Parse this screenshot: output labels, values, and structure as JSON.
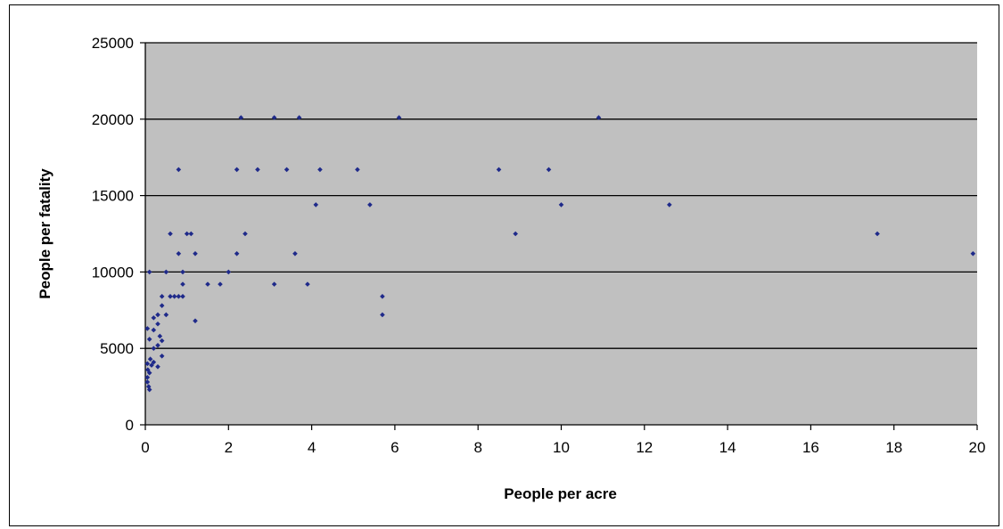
{
  "chart_data": {
    "type": "scatter",
    "title": "",
    "xlabel": "People per acre",
    "ylabel": "People per fatality",
    "xlim": [
      0,
      20
    ],
    "ylim": [
      0,
      25000
    ],
    "x_ticks": [
      0,
      2,
      4,
      6,
      8,
      10,
      12,
      14,
      16,
      18,
      20
    ],
    "y_ticks": [
      0,
      5000,
      10000,
      15000,
      20000,
      25000
    ],
    "grid": "horizontal",
    "legend": "none",
    "marker_color": "#1f2a8a",
    "background_color": "#c0c0c0",
    "series": [
      {
        "points": [
          [
            2.3,
            20100
          ],
          [
            3.1,
            20100
          ],
          [
            3.7,
            20100
          ],
          [
            6.1,
            20100
          ],
          [
            10.9,
            20100
          ],
          [
            0.8,
            16700
          ],
          [
            2.2,
            16700
          ],
          [
            2.7,
            16700
          ],
          [
            3.4,
            16700
          ],
          [
            4.2,
            16700
          ],
          [
            5.1,
            16700
          ],
          [
            8.5,
            16700
          ],
          [
            9.7,
            16700
          ],
          [
            4.1,
            14400
          ],
          [
            5.4,
            14400
          ],
          [
            10.0,
            14400
          ],
          [
            12.6,
            14400
          ],
          [
            0.6,
            12500
          ],
          [
            1.0,
            12500
          ],
          [
            1.1,
            12500
          ],
          [
            2.4,
            12500
          ],
          [
            8.9,
            12500
          ],
          [
            17.6,
            12500
          ],
          [
            0.8,
            11200
          ],
          [
            1.2,
            11200
          ],
          [
            2.2,
            11200
          ],
          [
            3.6,
            11200
          ],
          [
            19.9,
            11200
          ],
          [
            0.1,
            10000
          ],
          [
            0.5,
            10000
          ],
          [
            0.9,
            10000
          ],
          [
            2.0,
            10000
          ],
          [
            0.9,
            9200
          ],
          [
            1.5,
            9200
          ],
          [
            1.8,
            9200
          ],
          [
            3.1,
            9200
          ],
          [
            3.9,
            9200
          ],
          [
            0.4,
            8400
          ],
          [
            0.6,
            8400
          ],
          [
            0.7,
            8400
          ],
          [
            0.8,
            8400
          ],
          [
            0.9,
            8400
          ],
          [
            5.7,
            8400
          ],
          [
            0.4,
            7800
          ],
          [
            0.3,
            7200
          ],
          [
            0.5,
            7200
          ],
          [
            0.2,
            7000
          ],
          [
            5.7,
            7200
          ],
          [
            1.2,
            6800
          ],
          [
            0.3,
            6600
          ],
          [
            0.2,
            6200
          ],
          [
            0.05,
            6300
          ],
          [
            0.35,
            5800
          ],
          [
            0.1,
            5600
          ],
          [
            0.2,
            5000
          ],
          [
            0.3,
            5200
          ],
          [
            0.4,
            4500
          ],
          [
            0.4,
            5500
          ],
          [
            0.05,
            4000
          ],
          [
            0.15,
            3900
          ],
          [
            0.3,
            3800
          ],
          [
            0.2,
            4100
          ],
          [
            0.1,
            3400
          ],
          [
            0.05,
            3100
          ],
          [
            0.05,
            2800
          ],
          [
            0.08,
            2500
          ],
          [
            0.1,
            2300
          ],
          [
            0.06,
            3600
          ],
          [
            0.12,
            4300
          ]
        ]
      }
    ]
  }
}
